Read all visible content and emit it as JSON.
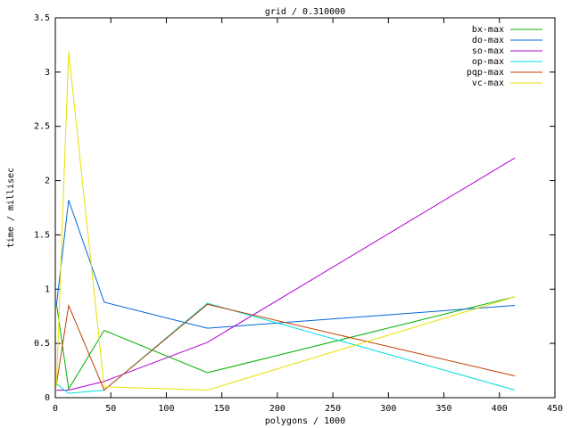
{
  "chart_data": {
    "type": "line",
    "title": "grid / 0.310000",
    "x_label": "polygons / 1000",
    "y_label": "time / millisec",
    "x": [
      1,
      12,
      44,
      137,
      414
    ],
    "series": [
      {
        "name": "bx-max",
        "color": "#00b000",
        "values": [
          0.87,
          0.08,
          0.62,
          0.23,
          0.93
        ]
      },
      {
        "name": "do-max",
        "color": "#0066dd",
        "values": [
          0.85,
          1.82,
          0.88,
          0.64,
          0.85
        ]
      },
      {
        "name": "so-max",
        "color": "#b000d0",
        "values": [
          0.07,
          0.07,
          0.15,
          0.51,
          2.21
        ]
      },
      {
        "name": "op-max",
        "color": "#00dddd",
        "values": [
          0.13,
          0.04,
          0.07,
          0.87,
          0.07
        ]
      },
      {
        "name": "pqp-max",
        "color": "#c04000",
        "values": [
          0.12,
          0.85,
          0.07,
          0.86,
          0.2
        ]
      },
      {
        "name": "vc-max",
        "color": "#e8e000",
        "values": [
          0.1,
          3.19,
          0.1,
          0.07,
          0.93
        ]
      }
    ],
    "xlim": [
      0,
      450
    ],
    "xticks": [
      0,
      50,
      100,
      150,
      200,
      250,
      300,
      350,
      400,
      450
    ],
    "ylim": [
      0,
      3.5
    ],
    "yticks": [
      0,
      0.5,
      1,
      1.5,
      2,
      2.5,
      3,
      3.5
    ],
    "legend": "top-right",
    "grid": false
  }
}
